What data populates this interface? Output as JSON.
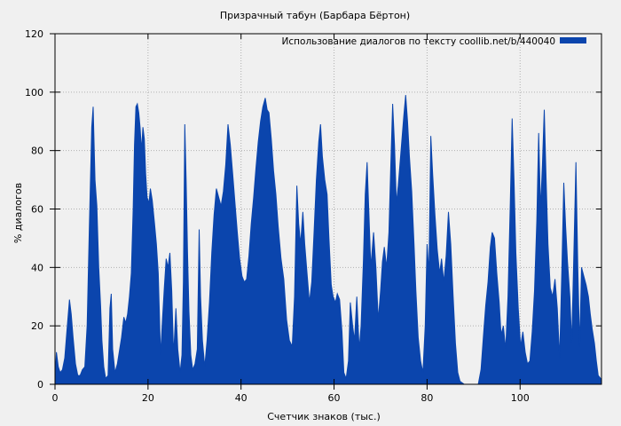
{
  "chart_data": {
    "type": "area",
    "title": "Призрачный табун (Барбара Бёртон)",
    "legend": {
      "label": "Использование диалогов по тексту  coollib.net/b/440040",
      "position": "top-right-inside"
    },
    "xlabel": "Счетчик знаков (тыс.)",
    "ylabel": "% диалогов",
    "xlim": [
      0,
      117.5
    ],
    "ylim": [
      0,
      120
    ],
    "x_ticks": [
      0,
      20,
      40,
      60,
      80,
      100
    ],
    "y_ticks": [
      0,
      20,
      40,
      60,
      80,
      100,
      120
    ],
    "grid": true,
    "colors": {
      "fill": "#0b45ad",
      "background": "#f0f0f0",
      "grid": "#b0b0b0",
      "border": "#000000",
      "text": "#000000"
    },
    "series": [
      {
        "name": "Использование диалогов по тексту  coollib.net/b/440040",
        "points": [
          [
            0,
            2
          ],
          [
            0.3,
            11
          ],
          [
            0.7,
            6
          ],
          [
            1.1,
            4
          ],
          [
            1.6,
            5
          ],
          [
            2.1,
            9
          ],
          [
            2.6,
            19
          ],
          [
            3.1,
            29
          ],
          [
            3.5,
            24
          ],
          [
            3.9,
            16
          ],
          [
            4.4,
            7
          ],
          [
            4.9,
            3
          ],
          [
            5.4,
            3
          ],
          [
            5.9,
            5
          ],
          [
            6.4,
            6
          ],
          [
            6.9,
            20
          ],
          [
            7.4,
            55
          ],
          [
            7.9,
            88
          ],
          [
            8.2,
            95
          ],
          [
            8.6,
            70
          ],
          [
            9,
            61
          ],
          [
            9.4,
            40
          ],
          [
            9.8,
            27
          ],
          [
            10.1,
            15
          ],
          [
            10.5,
            6
          ],
          [
            10.9,
            2
          ],
          [
            11.4,
            3
          ],
          [
            11.8,
            26
          ],
          [
            12.1,
            31
          ],
          [
            12.4,
            12
          ],
          [
            12.9,
            4
          ],
          [
            13.4,
            7
          ],
          [
            13.9,
            12
          ],
          [
            14.3,
            16
          ],
          [
            14.8,
            23
          ],
          [
            15.2,
            21
          ],
          [
            15.6,
            24
          ],
          [
            16,
            30
          ],
          [
            16.4,
            38
          ],
          [
            16.8,
            60
          ],
          [
            17.1,
            82
          ],
          [
            17.4,
            95
          ],
          [
            17.7,
            96
          ],
          [
            18,
            93
          ],
          [
            18.3,
            88
          ],
          [
            18.6,
            80
          ],
          [
            18.9,
            88
          ],
          [
            19.2,
            84
          ],
          [
            19.5,
            72
          ],
          [
            19.8,
            64
          ],
          [
            20.2,
            62
          ],
          [
            20.5,
            67
          ],
          [
            20.9,
            63
          ],
          [
            21.4,
            55
          ],
          [
            21.8,
            48
          ],
          [
            22.2,
            38
          ],
          [
            22.7,
            10
          ],
          [
            23.1,
            22
          ],
          [
            23.5,
            33
          ],
          [
            23.9,
            43
          ],
          [
            24.3,
            40
          ],
          [
            24.7,
            45
          ],
          [
            25.1,
            32
          ],
          [
            25.5,
            10
          ],
          [
            26,
            26
          ],
          [
            26.4,
            12
          ],
          [
            26.9,
            4
          ],
          [
            27.3,
            10
          ],
          [
            27.6,
            35
          ],
          [
            27.9,
            89
          ],
          [
            28.2,
            70
          ],
          [
            28.5,
            45
          ],
          [
            28.8,
            25
          ],
          [
            29.2,
            10
          ],
          [
            29.6,
            5
          ],
          [
            30.1,
            7
          ],
          [
            30.6,
            12
          ],
          [
            31,
            53
          ],
          [
            31.3,
            30
          ],
          [
            31.7,
            15
          ],
          [
            32.2,
            6
          ],
          [
            32.7,
            15
          ],
          [
            33.2,
            28
          ],
          [
            33.7,
            45
          ],
          [
            34.2,
            58
          ],
          [
            34.7,
            67
          ],
          [
            35.2,
            64
          ],
          [
            35.7,
            61
          ],
          [
            36.2,
            66
          ],
          [
            36.7,
            75
          ],
          [
            37.2,
            89
          ],
          [
            37.7,
            82
          ],
          [
            38.2,
            72
          ],
          [
            38.7,
            62
          ],
          [
            39.2,
            52
          ],
          [
            39.7,
            43
          ],
          [
            40.2,
            37
          ],
          [
            40.7,
            35
          ],
          [
            41.2,
            36
          ],
          [
            41.7,
            44
          ],
          [
            42.2,
            55
          ],
          [
            42.7,
            64
          ],
          [
            43.2,
            74
          ],
          [
            43.7,
            83
          ],
          [
            44.2,
            90
          ],
          [
            44.7,
            95
          ],
          [
            45.2,
            98
          ],
          [
            45.6,
            94
          ],
          [
            46,
            93
          ],
          [
            46.5,
            84
          ],
          [
            47,
            73
          ],
          [
            47.5,
            65
          ],
          [
            48,
            54
          ],
          [
            48.6,
            43
          ],
          [
            49.2,
            36
          ],
          [
            49.8,
            22
          ],
          [
            50.4,
            15
          ],
          [
            51,
            13
          ],
          [
            51.5,
            30
          ],
          [
            52,
            68
          ],
          [
            52.4,
            55
          ],
          [
            52.8,
            48
          ],
          [
            53.3,
            59
          ],
          [
            53.7,
            48
          ],
          [
            54.2,
            38
          ],
          [
            54.7,
            28
          ],
          [
            55.2,
            35
          ],
          [
            55.7,
            52
          ],
          [
            56.2,
            70
          ],
          [
            56.7,
            83
          ],
          [
            57.1,
            89
          ],
          [
            57.5,
            78
          ],
          [
            58,
            70
          ],
          [
            58.5,
            65
          ],
          [
            58.9,
            50
          ],
          [
            59.4,
            34
          ],
          [
            59.8,
            30
          ],
          [
            60.3,
            28
          ],
          [
            60.7,
            31
          ],
          [
            61.2,
            29
          ],
          [
            61.7,
            18
          ],
          [
            62.1,
            4
          ],
          [
            62.6,
            2
          ],
          [
            63.1,
            8
          ],
          [
            63.5,
            28
          ],
          [
            64,
            20
          ],
          [
            64.4,
            15
          ],
          [
            64.9,
            30
          ],
          [
            65.4,
            12
          ],
          [
            65.8,
            20
          ],
          [
            66.3,
            42
          ],
          [
            66.7,
            65
          ],
          [
            67.1,
            76
          ],
          [
            67.5,
            58
          ],
          [
            67.9,
            40
          ],
          [
            68.5,
            52
          ],
          [
            69,
            40
          ],
          [
            69.5,
            22
          ],
          [
            70,
            32
          ],
          [
            70.4,
            42
          ],
          [
            70.8,
            47
          ],
          [
            71.3,
            40
          ],
          [
            71.8,
            52
          ],
          [
            72.2,
            75
          ],
          [
            72.6,
            96
          ],
          [
            73,
            82
          ],
          [
            73.4,
            62
          ],
          [
            73.8,
            68
          ],
          [
            74.2,
            76
          ],
          [
            74.6,
            84
          ],
          [
            75,
            92
          ],
          [
            75.4,
            99
          ],
          [
            75.8,
            90
          ],
          [
            76.2,
            78
          ],
          [
            76.7,
            66
          ],
          [
            77.2,
            48
          ],
          [
            77.6,
            32
          ],
          [
            78.1,
            16
          ],
          [
            78.6,
            8
          ],
          [
            79.1,
            4
          ],
          [
            79.6,
            20
          ],
          [
            80,
            48
          ],
          [
            80.4,
            38
          ],
          [
            80.8,
            85
          ],
          [
            81.2,
            72
          ],
          [
            81.7,
            58
          ],
          [
            82.2,
            46
          ],
          [
            82.7,
            38
          ],
          [
            83.1,
            43
          ],
          [
            83.6,
            35
          ],
          [
            84.1,
            44
          ],
          [
            84.6,
            59
          ],
          [
            85.1,
            48
          ],
          [
            85.6,
            30
          ],
          [
            86.1,
            14
          ],
          [
            86.6,
            4
          ],
          [
            87.1,
            1
          ],
          [
            88,
            0
          ],
          [
            89.5,
            0
          ],
          [
            91,
            0
          ],
          [
            91.6,
            5
          ],
          [
            92.1,
            16
          ],
          [
            92.6,
            27
          ],
          [
            93.1,
            35
          ],
          [
            93.6,
            47
          ],
          [
            94,
            52
          ],
          [
            94.5,
            50
          ],
          [
            95,
            38
          ],
          [
            95.5,
            28
          ],
          [
            95.9,
            17
          ],
          [
            96.4,
            20
          ],
          [
            96.9,
            12
          ],
          [
            97.4,
            30
          ],
          [
            97.9,
            62
          ],
          [
            98.3,
            91
          ],
          [
            98.7,
            70
          ],
          [
            99.1,
            45
          ],
          [
            99.6,
            26
          ],
          [
            100.1,
            13
          ],
          [
            100.6,
            18
          ],
          [
            101.1,
            11
          ],
          [
            101.6,
            7
          ],
          [
            102.1,
            8
          ],
          [
            102.6,
            18
          ],
          [
            103.1,
            32
          ],
          [
            103.6,
            56
          ],
          [
            104,
            86
          ],
          [
            104.4,
            60
          ],
          [
            104.8,
            75
          ],
          [
            105.2,
            94
          ],
          [
            105.6,
            70
          ],
          [
            106,
            48
          ],
          [
            106.5,
            33
          ],
          [
            107,
            30
          ],
          [
            107.5,
            36
          ],
          [
            108,
            26
          ],
          [
            108.5,
            9
          ],
          [
            109,
            40
          ],
          [
            109.4,
            69
          ],
          [
            109.8,
            54
          ],
          [
            110.2,
            42
          ],
          [
            110.7,
            30
          ],
          [
            111.1,
            14
          ],
          [
            111.5,
            40
          ],
          [
            112,
            76
          ],
          [
            112.4,
            40
          ],
          [
            112.8,
            13
          ],
          [
            113.2,
            40
          ],
          [
            113.7,
            37
          ],
          [
            114.2,
            34
          ],
          [
            114.7,
            30
          ],
          [
            115.1,
            24
          ],
          [
            115.5,
            19
          ],
          [
            116,
            14
          ],
          [
            116.4,
            8
          ],
          [
            116.8,
            3
          ],
          [
            117.3,
            2
          ],
          [
            117.5,
            1
          ]
        ]
      }
    ]
  }
}
